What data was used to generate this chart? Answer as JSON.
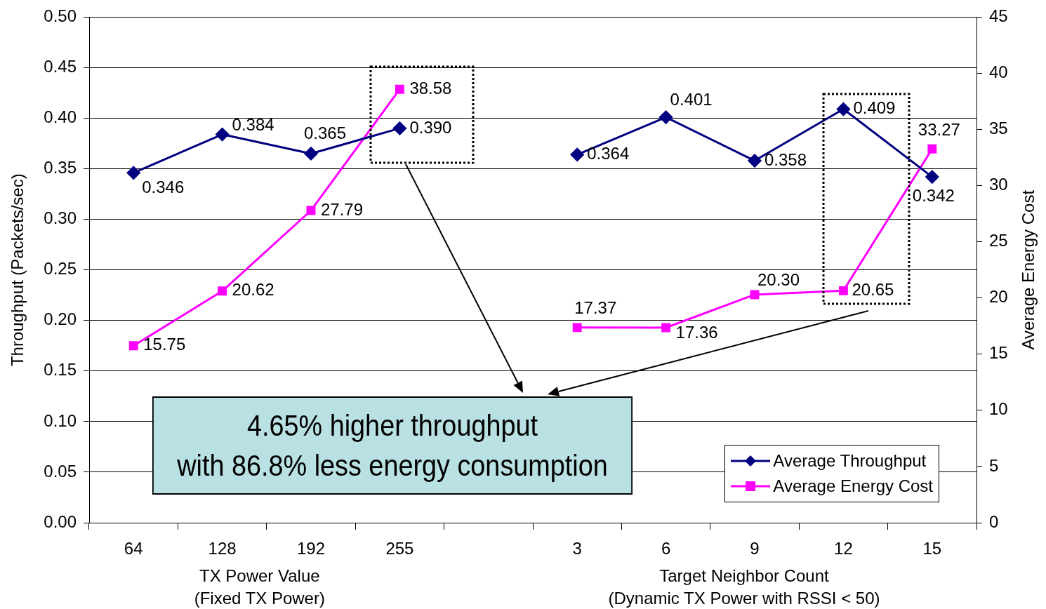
{
  "chart_data": {
    "type": "line",
    "categories": [
      "64",
      "128",
      "192",
      "255",
      null,
      "3",
      "6",
      "9",
      "12",
      "15"
    ],
    "series": [
      {
        "name": "Average Throughput",
        "color": "#000080",
        "marker": "diamond",
        "values": [
          0.346,
          0.384,
          0.365,
          0.39,
          null,
          0.364,
          0.401,
          0.358,
          0.409,
          0.342
        ],
        "value_labels": [
          "0.346",
          "0.384",
          "0.365",
          "0.390",
          null,
          "0.364",
          "0.401",
          "0.358",
          "0.409",
          "0.342"
        ]
      },
      {
        "name": "Average Energy Cost",
        "color": "#ff00ff",
        "marker": "square",
        "axis": "y2",
        "values": [
          15.75,
          20.62,
          27.79,
          38.58,
          null,
          17.37,
          17.36,
          20.3,
          20.65,
          33.27
        ],
        "value_labels": [
          "15.75",
          "20.62",
          "27.79",
          "38.58",
          null,
          "17.37",
          "17.36",
          "20.30",
          "20.65",
          "33.27"
        ]
      }
    ],
    "ylabel": "Throughput (Packets/sec)",
    "y2label": "Average Energy Cost",
    "ylim": [
      0,
      0.5
    ],
    "yticks": [
      {
        "value": 0,
        "label": "0.00"
      },
      {
        "value": 0.05,
        "label": "0.05"
      },
      {
        "value": 0.1,
        "label": "0.10"
      },
      {
        "value": 0.15,
        "label": "0.15"
      },
      {
        "value": 0.2,
        "label": "0.20"
      },
      {
        "value": 0.25,
        "label": "0.25"
      },
      {
        "value": 0.3,
        "label": "0.30"
      },
      {
        "value": 0.35,
        "label": "0.35"
      },
      {
        "value": 0.4,
        "label": "0.40"
      },
      {
        "value": 0.45,
        "label": "0.45"
      },
      {
        "value": 0.5,
        "label": "0.50"
      }
    ],
    "y2lim": [
      0,
      45
    ],
    "y2ticks": [
      0,
      5,
      10,
      15,
      20,
      25,
      30,
      35,
      40,
      45
    ],
    "grid": "y",
    "legend": "bottom right",
    "annotations": [
      "TX Power Value\n(Fixed TX Power)",
      "Target Neighbor Count\n(Dynamic TX Power with RSSI < 50)",
      "4.65% higher throughput\nwith 86.8% less energy consumption"
    ]
  }
}
